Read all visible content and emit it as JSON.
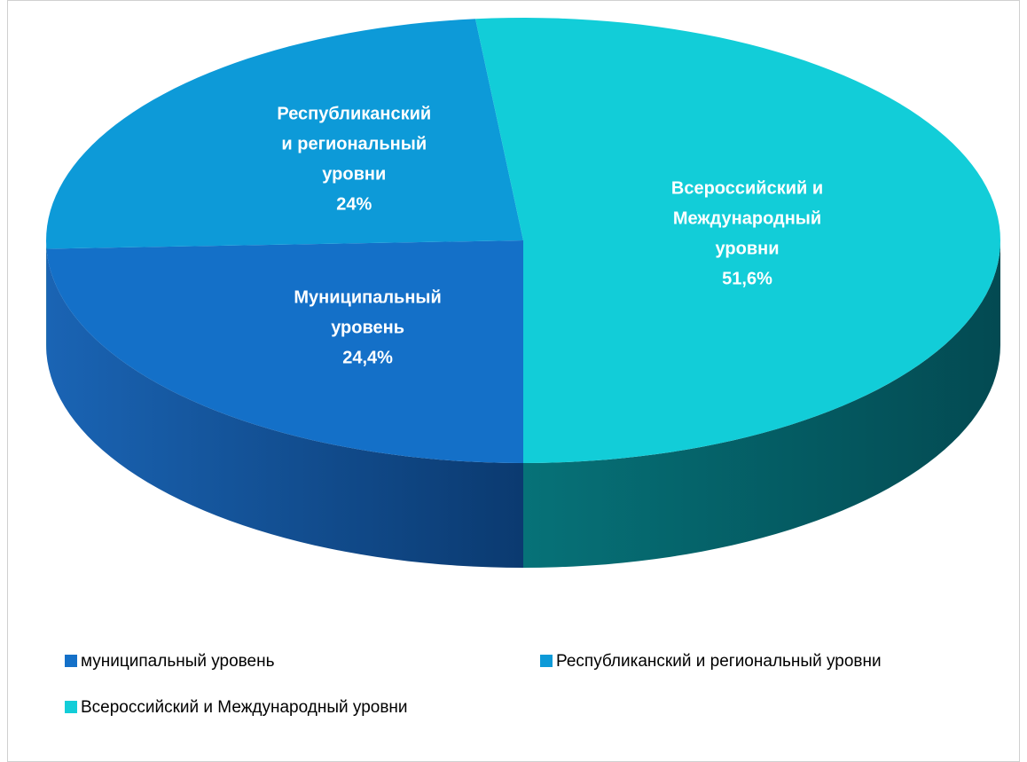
{
  "chart_data": {
    "type": "pie3d",
    "categories": [
      "муниципальный уровень",
      "Республиканский и региональный уровни",
      "Всероссийский и Международный уровни"
    ],
    "label_lines": [
      [
        "Муниципальный",
        "уровень"
      ],
      [
        "Республиканский",
        "и региональный",
        "уровни"
      ],
      [
        "Всероссийский и",
        "Международный",
        "уровни"
      ]
    ],
    "values": [
      24.4,
      24,
      51.6
    ],
    "value_labels": [
      "24,4%",
      "24%",
      "51,6%"
    ],
    "colors": [
      "#1470c8",
      "#0d9ad8",
      "#12cdd8"
    ]
  }
}
